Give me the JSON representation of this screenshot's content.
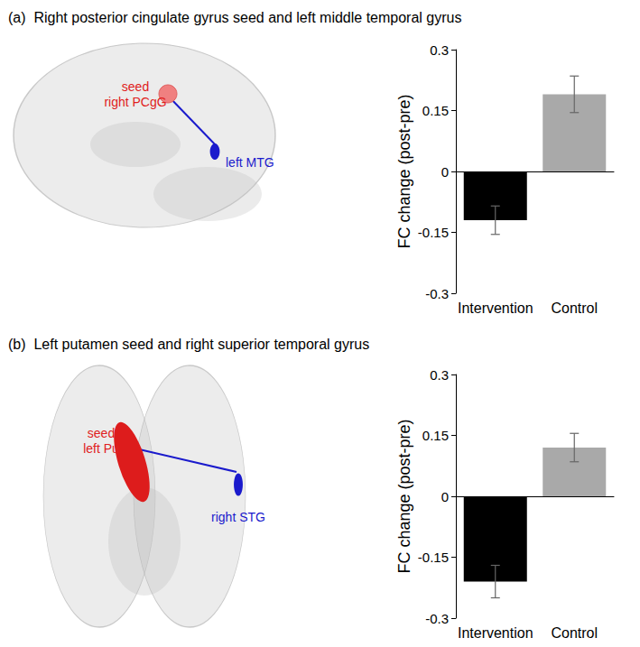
{
  "chart_data": [
    {
      "type": "bar",
      "title": "(a)  Right posterior cingulate gyrus seed and left middle temporal gyrus",
      "categories": [
        "Intervention",
        "Control"
      ],
      "values": [
        -0.12,
        0.19
      ],
      "errors": [
        0.035,
        0.045
      ],
      "colors": [
        "#000000",
        "#a9a9a9"
      ],
      "ylabel": "FC change (post-pre)",
      "ylim": [
        -0.3,
        0.3
      ],
      "yticks": [
        -0.3,
        -0.15,
        0,
        0.15,
        0.3
      ],
      "annotations": [
        "seed",
        "right PCgG",
        "left MTG"
      ]
    },
    {
      "type": "bar",
      "title": "(b)  Left putamen seed and right superior temporal gyrus",
      "categories": [
        "Intervention",
        "Control"
      ],
      "values": [
        -0.21,
        0.12
      ],
      "errors": [
        0.04,
        0.035
      ],
      "colors": [
        "#000000",
        "#a9a9a9"
      ],
      "ylabel": "FC change (post-pre)",
      "ylim": [
        -0.3,
        0.3
      ],
      "yticks": [
        -0.3,
        -0.15,
        0,
        0.15,
        0.3
      ],
      "annotations": [
        "seed",
        "left Pu",
        "right STG"
      ]
    }
  ]
}
